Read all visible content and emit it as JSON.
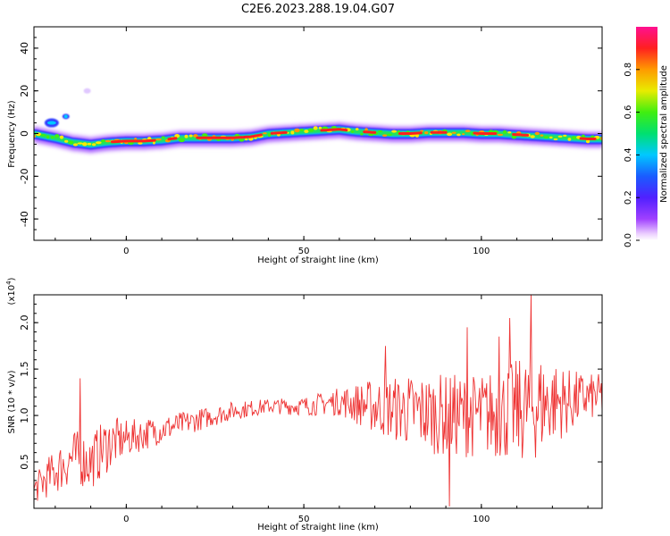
{
  "figure_title": "C2E6.2023.288.19.04.G07",
  "colorbar_label": "Normalized spectral amplitude",
  "colorbar_ticks": [
    "0.0",
    "0.2",
    "0.4",
    "0.6",
    "0.8"
  ],
  "colors": {
    "snr_line": "#ee3333",
    "ridge_core": "#ff2020",
    "background": "#ffffff"
  },
  "chart_data": [
    {
      "type": "heatmap",
      "title": "",
      "xlabel": "Height of straight line (km)",
      "ylabel": "Frequency (Hz)",
      "xlim": [
        -26,
        134
      ],
      "ylim": [
        -50,
        50
      ],
      "x_ticks": [
        0,
        50,
        100
      ],
      "y_ticks": [
        40,
        20,
        0,
        -20,
        -40
      ],
      "colorbar": {
        "label": "Normalized spectral amplitude",
        "range": [
          0.0,
          1.0
        ],
        "colormap": "rainbow (purple-blue-cyan-green-yellow-orange-red-magenta)"
      },
      "ridge": {
        "x": [
          -26,
          -20,
          -15,
          -10,
          -5,
          0,
          5,
          10,
          15,
          20,
          25,
          30,
          35,
          40,
          45,
          50,
          55,
          60,
          65,
          70,
          75,
          80,
          85,
          90,
          95,
          100,
          105,
          110,
          115,
          120,
          125,
          130,
          134
        ],
        "frequency_hz": [
          0,
          -2,
          -4,
          -5,
          -4,
          -3.5,
          -3.5,
          -3,
          -2,
          -2,
          -2,
          -2,
          -1.5,
          0,
          0.5,
          1,
          1.5,
          2,
          1,
          0.5,
          0,
          0,
          0.5,
          0.5,
          0.5,
          0,
          0,
          -0.5,
          -1,
          -1.5,
          -2,
          -2.5,
          -2.5
        ]
      },
      "isolated_blobs": [
        {
          "x": -21,
          "frequency_hz": 5
        },
        {
          "x": -17,
          "frequency_hz": 8
        },
        {
          "x": -11,
          "frequency_hz": 20
        }
      ]
    },
    {
      "type": "line",
      "title": "",
      "xlabel": "Height of straight line (km)",
      "ylabel": "SNR (10 * v/v)",
      "y_multiplier": "(x10^4)",
      "xlim": [
        -26,
        134
      ],
      "ylim": [
        0.0,
        2.3
      ],
      "x_ticks": [
        0,
        50,
        100
      ],
      "y_ticks": [
        "0.5",
        "1.0",
        "1.5",
        "2.0"
      ],
      "grid": false,
      "series": [
        {
          "envelope_x": [
            -26,
            -20,
            -15,
            -10,
            -5,
            0,
            10,
            20,
            30,
            40,
            50,
            60,
            70,
            80,
            90,
            100,
            110,
            115,
            120,
            125,
            130,
            134
          ],
          "mean": [
            0.2,
            0.4,
            0.55,
            0.5,
            0.7,
            0.75,
            0.85,
            0.95,
            1.05,
            1.1,
            1.1,
            1.15,
            1.1,
            1.05,
            1.0,
            1.0,
            1.05,
            1.1,
            1.15,
            1.15,
            1.2,
            1.2
          ],
          "amplitude": [
            0.15,
            0.25,
            0.3,
            0.3,
            0.3,
            0.2,
            0.15,
            0.12,
            0.1,
            0.08,
            0.1,
            0.15,
            0.3,
            0.4,
            0.45,
            0.45,
            0.55,
            0.6,
            0.45,
            0.35,
            0.25,
            0.25
          ],
          "spikes": [
            {
              "x": 91,
              "value": 0.02
            },
            {
              "x": 114,
              "value": 2.3
            },
            {
              "x": 108,
              "value": 2.05
            },
            {
              "x": 96,
              "value": 1.95
            },
            {
              "x": 105,
              "value": 1.85
            },
            {
              "x": -13,
              "value": 1.4
            },
            {
              "x": 73,
              "value": 1.75
            }
          ]
        }
      ]
    }
  ]
}
